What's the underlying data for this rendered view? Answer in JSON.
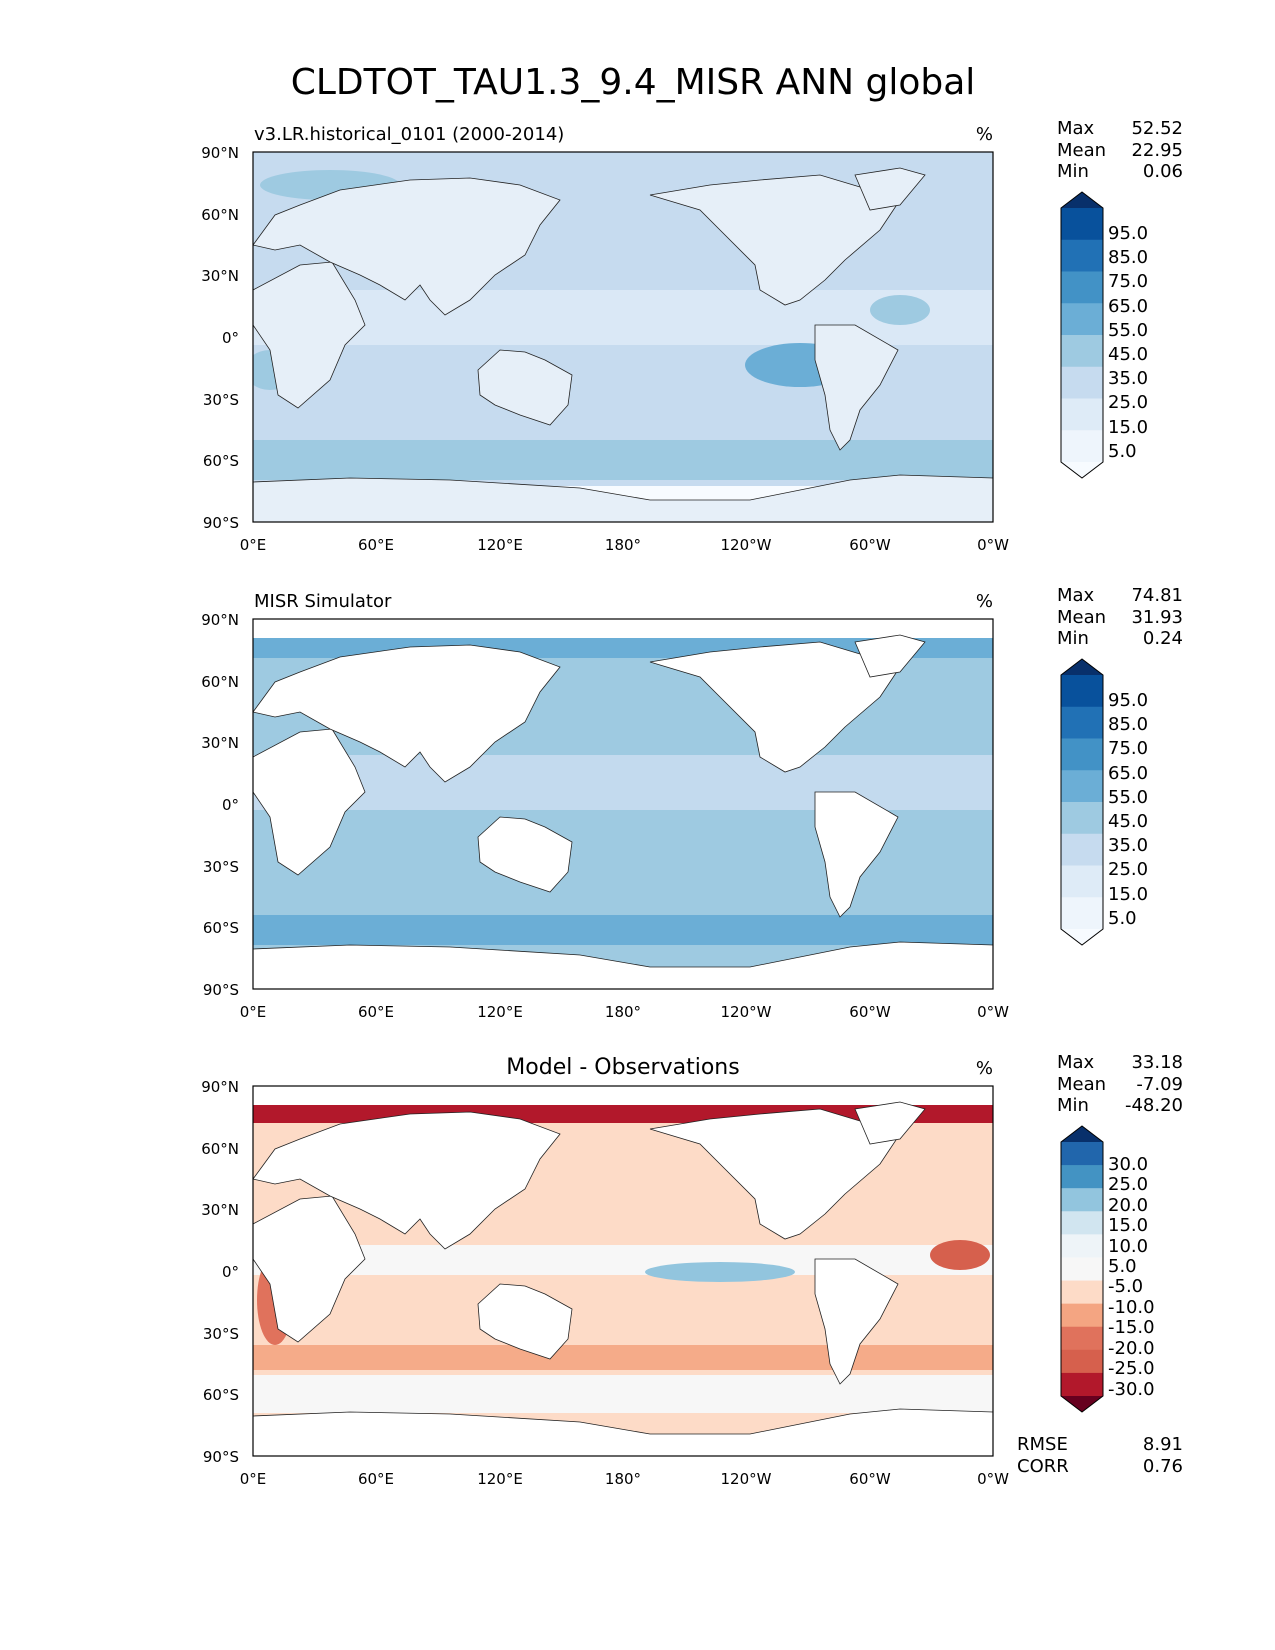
{
  "title": "CLDTOT_TAU1.3_9.4_MISR ANN global",
  "axes": {
    "lat_ticks": [
      "90°N",
      "60°N",
      "30°N",
      "0°",
      "30°S",
      "60°S",
      "90°S"
    ],
    "lon_ticks": [
      "0°E",
      "60°E",
      "120°E",
      "180°",
      "120°W",
      "60°W",
      "0°W"
    ]
  },
  "panels": [
    {
      "id": "test",
      "left_title": "v3.LR.historical_0101 (2000-2014)",
      "center_title": "",
      "units": "%",
      "stats": [
        {
          "label": "Max",
          "value": "52.52"
        },
        {
          "label": "Mean",
          "value": "22.95"
        },
        {
          "label": "Min",
          "value": "0.06"
        }
      ],
      "colorbar": {
        "tick_labels": [
          "95.0",
          "85.0",
          "75.0",
          "65.0",
          "55.0",
          "45.0",
          "35.0",
          "25.0",
          "15.0",
          "5.0"
        ],
        "colors": [
          "#08306b",
          "#08519c",
          "#2171b5",
          "#4292c6",
          "#6baed6",
          "#9ecae1",
          "#c6dbef",
          "#deebf7",
          "#eef5fc",
          "#f7fbff"
        ]
      },
      "land_masked": false,
      "extra_stats": []
    },
    {
      "id": "ref",
      "left_title": "MISR Simulator",
      "center_title": "",
      "units": "%",
      "stats": [
        {
          "label": "Max",
          "value": "74.81"
        },
        {
          "label": "Mean",
          "value": "31.93"
        },
        {
          "label": "Min",
          "value": "0.24"
        }
      ],
      "colorbar": {
        "tick_labels": [
          "95.0",
          "85.0",
          "75.0",
          "65.0",
          "55.0",
          "45.0",
          "35.0",
          "25.0",
          "15.0",
          "5.0"
        ],
        "colors": [
          "#08306b",
          "#08519c",
          "#2171b5",
          "#4292c6",
          "#6baed6",
          "#9ecae1",
          "#c6dbef",
          "#deebf7",
          "#eef5fc",
          "#f7fbff"
        ]
      },
      "land_masked": true,
      "extra_stats": []
    },
    {
      "id": "diff",
      "left_title": "",
      "center_title": "Model - Observations",
      "units": "%",
      "stats": [
        {
          "label": "Max",
          "value": "33.18"
        },
        {
          "label": "Mean",
          "value": "-7.09"
        },
        {
          "label": "Min",
          "value": "-48.20"
        }
      ],
      "colorbar": {
        "tick_labels": [
          "30.0",
          "25.0",
          "20.0",
          "15.0",
          "10.0",
          "5.0",
          "-5.0",
          "-10.0",
          "-15.0",
          "-20.0",
          "-25.0",
          "-30.0"
        ],
        "colors": [
          "#08306b",
          "#2166ac",
          "#4393c3",
          "#92c5de",
          "#d1e5f0",
          "#eef4f8",
          "#f7f7f7",
          "#fddbc7",
          "#f4a582",
          "#e0725c",
          "#d6604d",
          "#b2182b",
          "#67001f"
        ]
      },
      "land_masked": true,
      "extra_stats": [
        {
          "label": "RMSE",
          "value": "8.91"
        },
        {
          "label": "CORR",
          "value": "0.76"
        }
      ]
    }
  ]
}
